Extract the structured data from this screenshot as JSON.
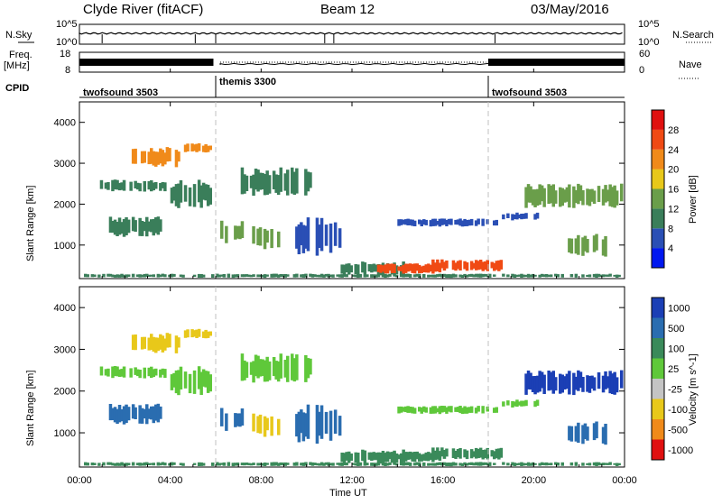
{
  "header": {
    "station": "Clyde River (fitACF)",
    "beam": "Beam 12",
    "date": "03/May/2016"
  },
  "top_panels": {
    "nsky_label": "N.Sky",
    "nsearch_label": "N.Search",
    "noise_ticks_left": [
      "10^5",
      "10^0"
    ],
    "noise_ticks_right": [
      "10^5",
      "10^0"
    ],
    "freq_label": "Freq.",
    "freq_unit": "[MHz]",
    "freq_ticks": [
      "18",
      "8"
    ],
    "nave_label": "Nave",
    "nave_ticks": [
      "60",
      "0"
    ],
    "cpid_label": "CPID",
    "cpid_segments": [
      {
        "label": "twofsound 3503",
        "start_h": 0.0,
        "end_h": 6.0
      },
      {
        "label": "themis 3300",
        "start_h": 6.0,
        "end_h": 18.0
      },
      {
        "label": "twofsound 3503",
        "start_h": 18.0,
        "end_h": 24.0
      }
    ]
  },
  "axes": {
    "ylabel": "Slant Range [km]",
    "y_ticks": [
      "1000",
      "2000",
      "3000",
      "4000"
    ],
    "xlabel": "Time UT",
    "x_ticks": [
      "00:00",
      "04:00",
      "08:00",
      "12:00",
      "16:00",
      "20:00",
      "00:00"
    ]
  },
  "power_colorbar": {
    "label": "Power [dB]",
    "ticks": [
      "4",
      "8",
      "12",
      "16",
      "20",
      "24",
      "28"
    ],
    "colors": [
      "#0018f0",
      "#2a4fb5",
      "#3a7e5a",
      "#6a9e4a",
      "#e8c81a",
      "#f08a1a",
      "#f04a14",
      "#e01010"
    ]
  },
  "velocity_colorbar": {
    "label": "Velocity [m s^-1]",
    "ticks": [
      "1000",
      "500",
      "100",
      "25",
      "-25",
      "-100",
      "-500",
      "-1000"
    ],
    "colors": [
      "#1b3fb5",
      "#2a6db0",
      "#3a8a5a",
      "#5fc83a",
      "#c4c4c4",
      "#e8c81a",
      "#f08a1a",
      "#e01010"
    ]
  },
  "chart_data": [
    {
      "type": "heatmap",
      "title": "Power",
      "xlabel": "Time UT",
      "ylabel": "Slant Range [km]",
      "x_range_hours": [
        0,
        24
      ],
      "ylim": [
        180,
        4500
      ],
      "colorbar_label": "Power [dB]",
      "colorbar_range": [
        0,
        30
      ],
      "regions": [
        {
          "t0": 0.2,
          "t1": 23.8,
          "r0": 200,
          "r1": 300,
          "value": 10
        },
        {
          "t0": 0.8,
          "t1": 3.8,
          "r0": 2300,
          "r1": 2600,
          "value": 8
        },
        {
          "t0": 2.2,
          "t1": 4.5,
          "r0": 2900,
          "r1": 3400,
          "value": 20
        },
        {
          "t0": 4.6,
          "t1": 5.9,
          "r0": 3250,
          "r1": 3500,
          "value": 22
        },
        {
          "t0": 1.3,
          "t1": 3.6,
          "r0": 1200,
          "r1": 1700,
          "value": 10
        },
        {
          "t0": 4.0,
          "t1": 5.8,
          "r0": 1900,
          "r1": 2600,
          "value": 8
        },
        {
          "t0": 6.2,
          "t1": 7.2,
          "r0": 1000,
          "r1": 1600,
          "value": 12
        },
        {
          "t0": 7.6,
          "t1": 8.8,
          "r0": 900,
          "r1": 1500,
          "value": 14
        },
        {
          "t0": 7.0,
          "t1": 10.2,
          "r0": 2200,
          "r1": 2900,
          "value": 10
        },
        {
          "t0": 9.5,
          "t1": 11.5,
          "r0": 700,
          "r1": 1700,
          "value": 6
        },
        {
          "t0": 11.5,
          "t1": 14.5,
          "r0": 250,
          "r1": 600,
          "value": 8
        },
        {
          "t0": 13.0,
          "t1": 16.0,
          "r0": 300,
          "r1": 550,
          "value": 26
        },
        {
          "t0": 15.5,
          "t1": 18.6,
          "r0": 350,
          "r1": 650,
          "value": 24
        },
        {
          "t0": 14.0,
          "t1": 18.4,
          "r0": 1450,
          "r1": 1650,
          "value": 6
        },
        {
          "t0": 18.6,
          "t1": 20.2,
          "r0": 1600,
          "r1": 1800,
          "value": 6
        },
        {
          "t0": 19.5,
          "t1": 23.9,
          "r0": 1900,
          "r1": 2500,
          "value": 14
        },
        {
          "t0": 21.5,
          "t1": 23.2,
          "r0": 700,
          "r1": 1300,
          "value": 12
        }
      ]
    },
    {
      "type": "heatmap",
      "title": "Velocity",
      "xlabel": "Time UT",
      "ylabel": "Slant Range [km]",
      "x_range_hours": [
        0,
        24
      ],
      "ylim": [
        180,
        4500
      ],
      "colorbar_label": "Velocity [m s^-1]",
      "colorbar_range": [
        -1000,
        1000
      ],
      "regions": [
        {
          "t0": 0.2,
          "t1": 23.8,
          "r0": 200,
          "r1": 300,
          "value": 60
        },
        {
          "t0": 0.8,
          "t1": 3.8,
          "r0": 2300,
          "r1": 2600,
          "value": 0
        },
        {
          "t0": 2.2,
          "t1": 4.5,
          "r0": 2900,
          "r1": 3400,
          "value": -300
        },
        {
          "t0": 4.6,
          "t1": 5.9,
          "r0": 3250,
          "r1": 3500,
          "value": -150
        },
        {
          "t0": 1.3,
          "t1": 3.6,
          "r0": 1200,
          "r1": 1700,
          "value": 200
        },
        {
          "t0": 4.0,
          "t1": 5.8,
          "r0": 1900,
          "r1": 2600,
          "value": 0
        },
        {
          "t0": 6.2,
          "t1": 7.2,
          "r0": 1000,
          "r1": 1600,
          "value": 200
        },
        {
          "t0": 7.6,
          "t1": 8.8,
          "r0": 900,
          "r1": 1500,
          "value": -500
        },
        {
          "t0": 7.0,
          "t1": 10.2,
          "r0": 2200,
          "r1": 2900,
          "value": 0
        },
        {
          "t0": 9.5,
          "t1": 11.5,
          "r0": 700,
          "r1": 1700,
          "value": 100
        },
        {
          "t0": 11.5,
          "t1": 14.5,
          "r0": 250,
          "r1": 600,
          "value": 80
        },
        {
          "t0": 13.0,
          "t1": 16.0,
          "r0": 300,
          "r1": 550,
          "value": 80
        },
        {
          "t0": 15.5,
          "t1": 18.6,
          "r0": 350,
          "r1": 650,
          "value": 90
        },
        {
          "t0": 14.0,
          "t1": 18.4,
          "r0": 1450,
          "r1": 1650,
          "value": 0
        },
        {
          "t0": 18.6,
          "t1": 20.2,
          "r0": 1600,
          "r1": 1800,
          "value": 0
        },
        {
          "t0": 19.5,
          "t1": 23.9,
          "r0": 1900,
          "r1": 2500,
          "value": 700
        },
        {
          "t0": 21.5,
          "t1": 23.2,
          "r0": 700,
          "r1": 1300,
          "value": 150
        }
      ]
    }
  ]
}
